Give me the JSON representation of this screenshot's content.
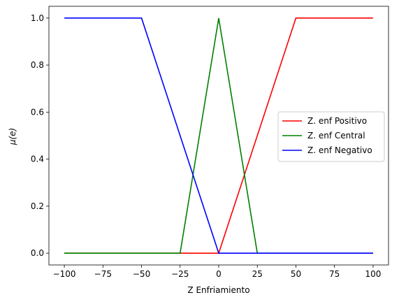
{
  "chart_data": {
    "type": "line",
    "title": "",
    "xlabel": "Z Enfriamiento",
    "ylabel": "μ(e)",
    "xlim": [
      -110,
      110
    ],
    "ylim": [
      -0.05,
      1.05
    ],
    "xticks": [
      -100,
      -75,
      -50,
      -25,
      0,
      25,
      50,
      75,
      100
    ],
    "xtick_labels": [
      "−100",
      "−75",
      "−50",
      "−25",
      "0",
      "25",
      "50",
      "75",
      "100"
    ],
    "yticks": [
      0.0,
      0.2,
      0.4,
      0.6,
      0.8,
      1.0
    ],
    "ytick_labels": [
      "0.0",
      "0.2",
      "0.4",
      "0.6",
      "0.8",
      "1.0"
    ],
    "grid": false,
    "legend_position": "center-right",
    "series": [
      {
        "name": "Z. enf Positivo",
        "color": "#ff0000",
        "x": [
          -100,
          -25,
          0,
          50,
          100
        ],
        "y": [
          0,
          0,
          0,
          1,
          1
        ]
      },
      {
        "name": "Z. enf Central",
        "color": "#008000",
        "x": [
          -100,
          -25,
          0,
          25,
          100
        ],
        "y": [
          0,
          0,
          1,
          0,
          0
        ]
      },
      {
        "name": "Z. enf Negativo",
        "color": "#0000ff",
        "x": [
          -100,
          -50,
          0,
          25,
          100
        ],
        "y": [
          1,
          1,
          0,
          0,
          0
        ]
      }
    ]
  }
}
